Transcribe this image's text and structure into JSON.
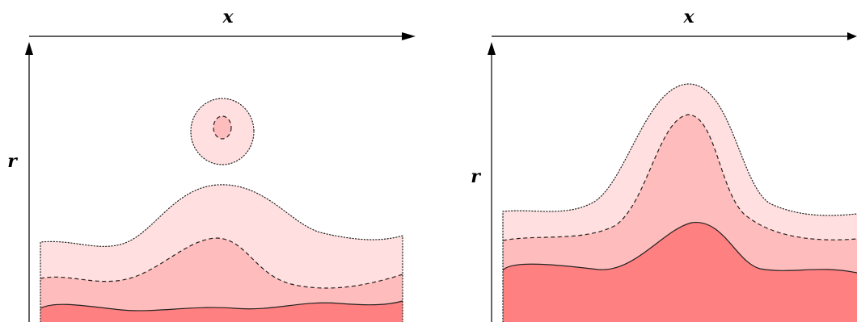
{
  "panels": [
    {
      "x_axis_label": "x",
      "r_axis_label": "r"
    },
    {
      "x_axis_label": "x",
      "r_axis_label": "r"
    }
  ],
  "colors": {
    "outer_region": "#ffdfdf",
    "middle_region": "#ffbcbc",
    "inner_region": "#ff8080",
    "outline": "#222222"
  },
  "boundary_styles": [
    "dotted",
    "dashed",
    "solid"
  ]
}
